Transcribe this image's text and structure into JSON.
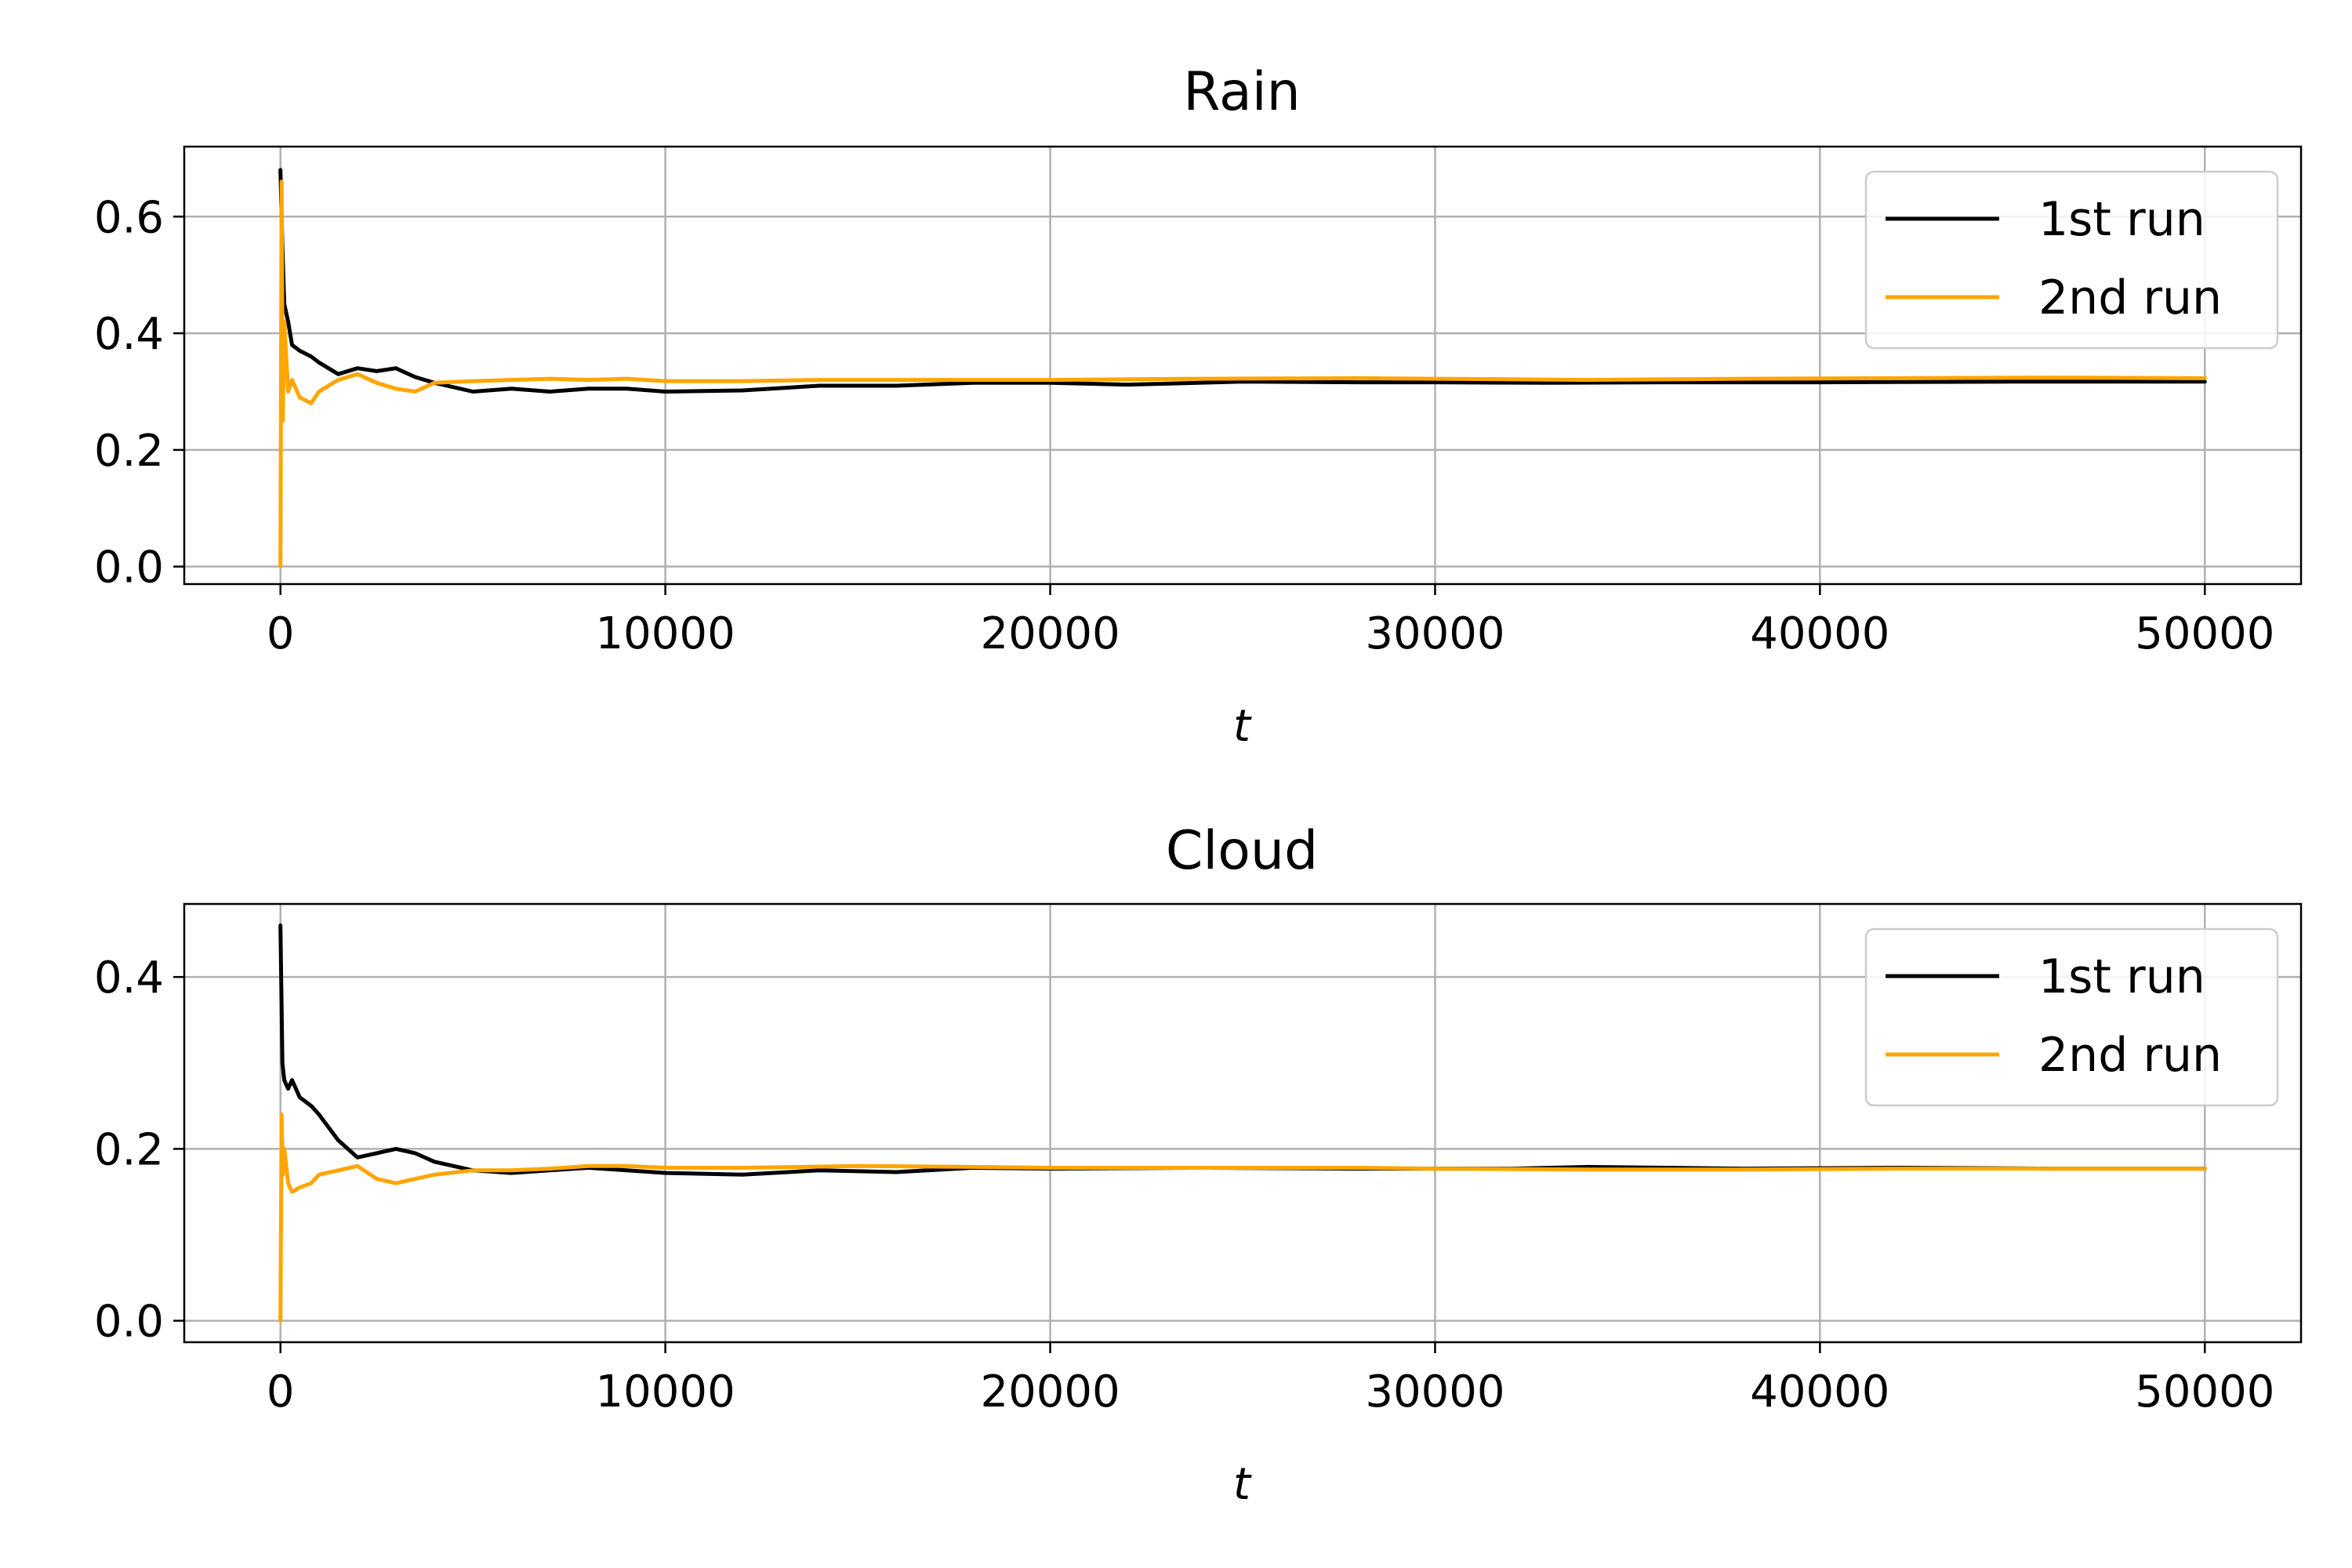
{
  "chart_data": [
    {
      "type": "line",
      "title": "Rain",
      "xlabel": "t",
      "ylabel": "",
      "xlim": [
        -2500,
        52500
      ],
      "ylim": [
        -0.03,
        0.72
      ],
      "xticks": [
        0,
        10000,
        20000,
        30000,
        40000,
        50000
      ],
      "xtick_labels": [
        "0",
        "10000",
        "20000",
        "30000",
        "40000",
        "50000"
      ],
      "yticks": [
        0.0,
        0.2,
        0.4,
        0.6
      ],
      "ytick_labels": [
        "0.0",
        "0.2",
        "0.4",
        "0.6"
      ],
      "grid": true,
      "legend": "top-right",
      "series": [
        {
          "name": "1st run",
          "color": "#000000",
          "x": [
            0,
            50,
            100,
            200,
            300,
            500,
            800,
            1000,
            1500,
            2000,
            2500,
            3000,
            3500,
            4000,
            5000,
            6000,
            7000,
            8000,
            9000,
            10000,
            12000,
            14000,
            16000,
            18000,
            20000,
            22000,
            25000,
            28000,
            30000,
            33000,
            36000,
            40000,
            45000,
            50000
          ],
          "y": [
            0.68,
            0.55,
            0.45,
            0.42,
            0.38,
            0.37,
            0.36,
            0.35,
            0.33,
            0.34,
            0.335,
            0.34,
            0.325,
            0.315,
            0.3,
            0.305,
            0.3,
            0.305,
            0.305,
            0.3,
            0.302,
            0.31,
            0.31,
            0.315,
            0.315,
            0.312,
            0.317,
            0.316,
            0.316,
            0.315,
            0.316,
            0.316,
            0.317,
            0.317
          ]
        },
        {
          "name": "2nd run",
          "color": "#ffa500",
          "x": [
            0,
            30,
            60,
            100,
            200,
            300,
            500,
            800,
            1000,
            1500,
            2000,
            2500,
            3000,
            3500,
            4000,
            5000,
            6000,
            7000,
            8000,
            9000,
            10000,
            12000,
            14000,
            16000,
            18000,
            20000,
            24000,
            28000,
            30000,
            34000,
            38000,
            42000,
            46000,
            50000
          ],
          "y": [
            0.0,
            0.66,
            0.25,
            0.42,
            0.3,
            0.32,
            0.29,
            0.28,
            0.3,
            0.32,
            0.33,
            0.315,
            0.305,
            0.3,
            0.315,
            0.318,
            0.32,
            0.322,
            0.32,
            0.322,
            0.318,
            0.318,
            0.32,
            0.32,
            0.32,
            0.32,
            0.322,
            0.323,
            0.322,
            0.32,
            0.322,
            0.323,
            0.324,
            0.323
          ]
        }
      ]
    },
    {
      "type": "line",
      "title": "Cloud",
      "xlabel": "t",
      "ylabel": "",
      "xlim": [
        -2500,
        52500
      ],
      "ylim": [
        -0.025,
        0.485
      ],
      "xticks": [
        0,
        10000,
        20000,
        30000,
        40000,
        50000
      ],
      "xtick_labels": [
        "0",
        "10000",
        "20000",
        "30000",
        "40000",
        "50000"
      ],
      "yticks": [
        0.0,
        0.2,
        0.4
      ],
      "ytick_labels": [
        "0.0",
        "0.2",
        "0.4"
      ],
      "grid": true,
      "legend": "top-right",
      "series": [
        {
          "name": "1st run",
          "color": "#000000",
          "x": [
            0,
            50,
            100,
            200,
            300,
            500,
            800,
            1000,
            1500,
            2000,
            2500,
            3000,
            3500,
            4000,
            4500,
            5000,
            6000,
            7000,
            8000,
            9000,
            10000,
            12000,
            14000,
            16000,
            18000,
            20000,
            24000,
            28000,
            32000,
            34000,
            38000,
            42000,
            46000,
            50000
          ],
          "y": [
            0.46,
            0.3,
            0.28,
            0.27,
            0.28,
            0.26,
            0.25,
            0.24,
            0.21,
            0.19,
            0.195,
            0.2,
            0.195,
            0.185,
            0.18,
            0.175,
            0.172,
            0.175,
            0.178,
            0.175,
            0.172,
            0.17,
            0.175,
            0.173,
            0.178,
            0.177,
            0.178,
            0.177,
            0.177,
            0.179,
            0.177,
            0.178,
            0.177,
            0.177
          ]
        },
        {
          "name": "2nd run",
          "color": "#ffa500",
          "x": [
            0,
            30,
            60,
            100,
            200,
            300,
            500,
            800,
            1000,
            1500,
            2000,
            2500,
            3000,
            3500,
            4000,
            5000,
            6000,
            7000,
            8000,
            9000,
            10000,
            12000,
            15000,
            18000,
            20000,
            24000,
            28000,
            30000,
            34000,
            38000,
            42000,
            46000,
            50000
          ],
          "y": [
            0.0,
            0.24,
            0.17,
            0.2,
            0.16,
            0.15,
            0.155,
            0.16,
            0.17,
            0.175,
            0.18,
            0.165,
            0.16,
            0.165,
            0.17,
            0.175,
            0.175,
            0.177,
            0.18,
            0.18,
            0.178,
            0.178,
            0.18,
            0.179,
            0.178,
            0.178,
            0.178,
            0.177,
            0.176,
            0.176,
            0.177,
            0.177,
            0.177
          ]
        }
      ]
    }
  ]
}
